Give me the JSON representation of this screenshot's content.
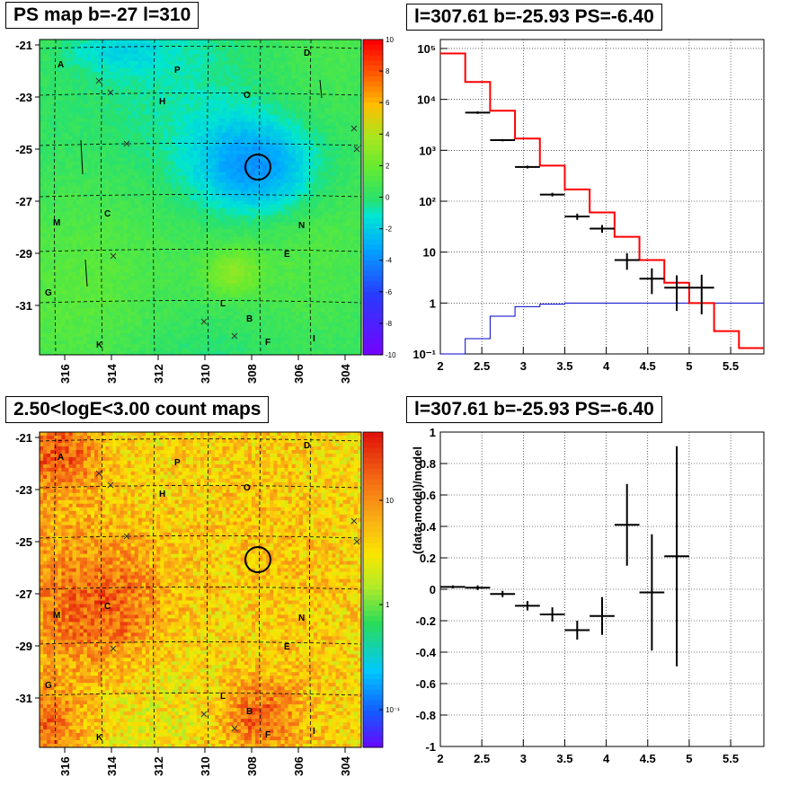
{
  "panels": {
    "tl_title": "PS map b=-27 l=310",
    "tr_title": "l=307.61 b=-25.93 PS=-6.40",
    "bl_title": "2.50<logE<3.00 count maps",
    "br_title": "l=307.61 b=-25.93 PS=-6.40"
  },
  "colors": {
    "data": "#000000",
    "model": "#ff0000",
    "component": "#0000cc",
    "ps_map_background": "#33e066",
    "count_map_background": "#f0a030"
  },
  "chart_data": [
    {
      "id": "ps_map",
      "type": "heatmap",
      "title": "PS map b=-27 l=310",
      "x_ticks": [
        "316",
        "314",
        "312",
        "310",
        "308",
        "306",
        "304"
      ],
      "y_ticks": [
        "-21",
        "-23",
        "-25",
        "-27",
        "-29",
        "-31"
      ],
      "colorbar": {
        "min": -10,
        "max": 10,
        "ticks": [
          "10",
          "8",
          "6",
          "4",
          "2",
          "0",
          "-2",
          "-4",
          "-6",
          "-8",
          "-10"
        ]
      },
      "source_labels": [
        "A",
        "D",
        "P",
        "H",
        "O",
        "M",
        "C",
        "N",
        "E",
        "G",
        "L",
        "B",
        "K",
        "F",
        "I"
      ],
      "circle_center": {
        "l": 307.61,
        "b": -25.93
      }
    },
    {
      "id": "spectrum",
      "type": "line",
      "title": "l=307.61 b=-25.93 PS=-6.40",
      "log_y": true,
      "xlim": [
        2,
        5.9
      ],
      "ylim": [
        0.1,
        150000
      ],
      "x_ticks": [
        "2",
        "2.5",
        "3",
        "3.5",
        "4",
        "4.5",
        "5",
        "5.5"
      ],
      "y_ticks": [
        "10⁻¹",
        "1",
        "10",
        "10²",
        "10³",
        "10⁴",
        "10⁵"
      ],
      "series": [
        {
          "role": "data",
          "x": [
            2.45,
            2.75,
            3.05,
            3.35,
            3.65,
            3.95,
            4.25,
            4.55,
            4.85,
            5.15
          ],
          "y": [
            5500,
            1580,
            470,
            135,
            50,
            29,
            7,
            3,
            2,
            2
          ],
          "yerr_lo": [
            5200,
            1500,
            440,
            124,
            43,
            24,
            4.5,
            1.5,
            0.7,
            0.6
          ],
          "yerr_hi": [
            5800,
            1660,
            500,
            146,
            57,
            34,
            9.5,
            4.8,
            3.5,
            3.6
          ]
        },
        {
          "role": "model",
          "edges": [
            2.0,
            2.3,
            2.6,
            2.9,
            3.2,
            3.5,
            3.8,
            4.1,
            4.4,
            4.7,
            5.0,
            5.3,
            5.6,
            5.9
          ],
          "values": [
            80000,
            22000,
            6000,
            1700,
            500,
            170,
            60,
            20,
            7,
            2.5,
            1,
            0.28,
            0.13
          ]
        },
        {
          "role": "component",
          "edges": [
            2.0,
            2.3,
            2.6,
            2.9,
            3.2,
            3.5,
            3.8,
            4.1,
            4.4,
            4.7,
            5.0,
            5.3,
            5.6,
            5.9
          ],
          "values": [
            0.1,
            0.2,
            0.55,
            0.85,
            0.95,
            1,
            1,
            1,
            1,
            1,
            1,
            1,
            1
          ]
        }
      ]
    },
    {
      "id": "count_map",
      "type": "heatmap",
      "title": "2.50<logE<3.00 count maps",
      "x_ticks": [
        "316",
        "314",
        "312",
        "310",
        "308",
        "306",
        "304"
      ],
      "y_ticks": [
        "-21",
        "-23",
        "-25",
        "-27",
        "-29",
        "-31"
      ],
      "colorbar": {
        "log": true,
        "ticks": [
          "10",
          "1",
          "10⁻¹"
        ]
      },
      "source_labels": [
        "A",
        "D",
        "P",
        "H",
        "O",
        "M",
        "C",
        "N",
        "E",
        "G",
        "L",
        "B",
        "K",
        "F",
        "I"
      ],
      "circle_center": {
        "l": 307.61,
        "b": -25.93
      }
    },
    {
      "id": "residuals",
      "type": "scatter",
      "title": "l=307.61 b=-25.93 PS=-6.40",
      "ylabel": "(data-model)/model",
      "xlim": [
        2,
        5.9
      ],
      "ylim": [
        -1,
        1
      ],
      "x_ticks": [
        "2",
        "2.5",
        "3",
        "3.5",
        "4",
        "4.5",
        "5",
        "5.5"
      ],
      "y_ticks": [
        "1",
        "0.8",
        "0.6",
        "0.4",
        "0.2",
        "0",
        "-0.2",
        "-0.4",
        "-0.6",
        "-0.8",
        "-1"
      ],
      "x": [
        2.15,
        2.45,
        2.75,
        3.05,
        3.35,
        3.65,
        3.95,
        4.25,
        4.55,
        4.85
      ],
      "y": [
        0.015,
        0.01,
        -0.03,
        -0.105,
        -0.16,
        -0.26,
        -0.17,
        0.41,
        -0.02,
        0.21
      ],
      "yerr": [
        0.01,
        0.015,
        0.02,
        0.03,
        0.045,
        0.06,
        0.12,
        0.26,
        0.37,
        0.7
      ]
    }
  ]
}
